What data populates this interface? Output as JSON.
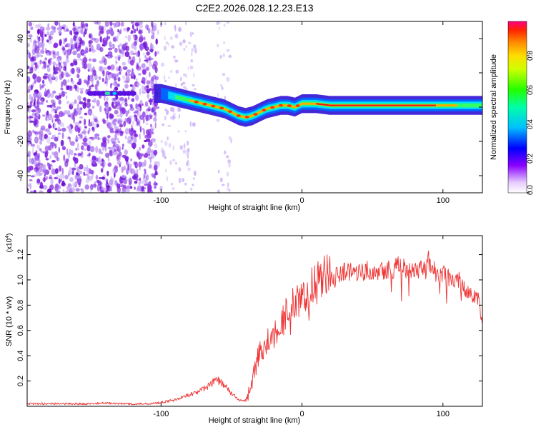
{
  "title": "C2E2.2026.028.12.23.E13",
  "colors": {
    "snr_line": "#ee3333",
    "axis": "#000000",
    "background": "#ffffff"
  },
  "chart_data": [
    {
      "type": "heatmap",
      "name": "spectrogram",
      "xlabel": "Height of straight line (km)",
      "ylabel": "Frequency (Hz)",
      "xlim": [
        -195,
        128
      ],
      "ylim": [
        -50,
        50
      ],
      "xticks": [
        -100,
        0,
        100
      ],
      "xtick_labels": [
        "-100",
        "0",
        "100"
      ],
      "yticks": [
        -40,
        -20,
        0,
        20,
        40
      ],
      "ytick_labels": [
        "-40",
        "-20",
        "0",
        "20",
        "40"
      ],
      "ridge": {
        "x": [
          -195,
          -150,
          -140,
          -130,
          -120,
          -105,
          -100,
          -95,
          -90,
          -85,
          -80,
          -75,
          -70,
          -65,
          -60,
          -55,
          -50,
          -45,
          -40,
          -35,
          -30,
          -25,
          -20,
          -15,
          -10,
          -5,
          0,
          5,
          10,
          20,
          40,
          60,
          80,
          90,
          100,
          110,
          128
        ],
        "y": [
          8,
          8,
          7,
          7,
          7,
          8,
          8,
          7,
          6,
          5,
          4,
          3,
          2,
          1,
          0,
          -1,
          -3,
          -5,
          -6,
          -5,
          -3,
          -1,
          0,
          1,
          1,
          0,
          2,
          2,
          2,
          1,
          1,
          1,
          1,
          1,
          1,
          1,
          1
        ]
      },
      "colorbar": {
        "label": "Normalized spectral amplitude",
        "range": [
          0,
          1
        ],
        "ticks": [
          0,
          0.2,
          0.4,
          0.6,
          0.8
        ],
        "tick_labels": [
          "0.0",
          "0.2",
          "0.4",
          "0.6",
          "0.8"
        ]
      }
    },
    {
      "type": "line",
      "name": "snr",
      "xlabel": "Height of straight line (km)",
      "ylabel": "SNR (10 * v/v)",
      "scale_label": "(x10",
      "scale_exp": "4",
      "scale_close": ")",
      "xlim": [
        -195,
        128
      ],
      "ylim": [
        0,
        1.35
      ],
      "xticks": [
        -100,
        0,
        100
      ],
      "xtick_labels": [
        "-100",
        "0",
        "100"
      ],
      "yticks": [
        0.2,
        0.4,
        0.6,
        0.8,
        1.0,
        1.2
      ],
      "ytick_labels": [
        "0.2",
        "0.4",
        "0.6",
        "0.8",
        "1.0",
        "1.2"
      ],
      "series": [
        {
          "name": "SNR",
          "x": [
            -195,
            -170,
            -150,
            -140,
            -130,
            -120,
            -110,
            -100,
            -95,
            -90,
            -85,
            -80,
            -75,
            -70,
            -65,
            -62,
            -60,
            -58,
            -55,
            -52,
            -50,
            -47,
            -45,
            -42,
            -40,
            -38,
            -36,
            -34,
            -32,
            -30,
            -28,
            -25,
            -22,
            -20,
            -18,
            -15,
            -12,
            -10,
            -8,
            -5,
            -2,
            0,
            3,
            6,
            10,
            15,
            20,
            25,
            30,
            40,
            50,
            60,
            70,
            80,
            85,
            88,
            90,
            92,
            95,
            100,
            105,
            110,
            115,
            120,
            125,
            128
          ],
          "y": [
            0.02,
            0.02,
            0.02,
            0.025,
            0.02,
            0.02,
            0.02,
            0.03,
            0.04,
            0.05,
            0.07,
            0.09,
            0.11,
            0.14,
            0.17,
            0.2,
            0.21,
            0.19,
            0.16,
            0.13,
            0.1,
            0.07,
            0.05,
            0.04,
            0.05,
            0.1,
            0.18,
            0.26,
            0.35,
            0.42,
            0.46,
            0.5,
            0.55,
            0.58,
            0.62,
            0.68,
            0.72,
            0.75,
            0.78,
            0.8,
            0.82,
            0.85,
            0.88,
            0.92,
            0.96,
            1.0,
            1.03,
            1.05,
            1.06,
            1.07,
            1.08,
            1.09,
            1.1,
            1.09,
            1.1,
            1.12,
            1.15,
            1.1,
            1.06,
            1.04,
            1.02,
            1.0,
            0.95,
            0.9,
            0.84,
            0.68
          ]
        }
      ]
    }
  ]
}
